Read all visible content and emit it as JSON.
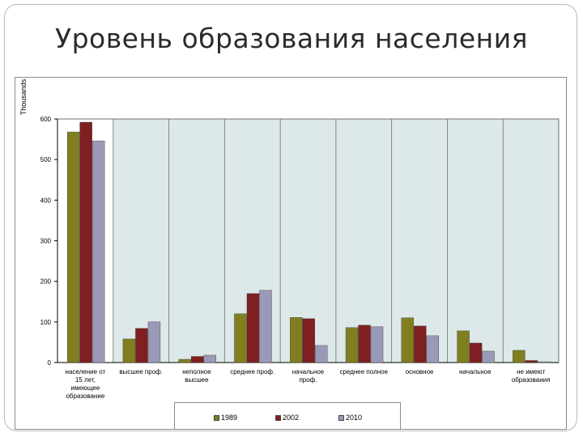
{
  "slide": {
    "title": "Уровень образования населения"
  },
  "chart_data": {
    "type": "bar",
    "title": "",
    "xlabel": "",
    "ylabel": "Thousands",
    "ylim": [
      0,
      600
    ],
    "yticks": [
      0,
      100,
      200,
      300,
      400,
      500,
      600
    ],
    "grid": true,
    "legend_position": "bottom",
    "categories": [
      "население от 15 лет, имеющее образование",
      "высшее проф.",
      "неполное высшее",
      "среднее проф.",
      "начальное проф.",
      "среднее полное",
      "основное",
      "начальное",
      "не имеют образования"
    ],
    "series": [
      {
        "name": "1989",
        "color": "#7f7f20",
        "values": [
          568,
          58,
          8,
          120,
          111,
          86,
          110,
          78,
          30
        ]
      },
      {
        "name": "2002",
        "color": "#7f1f22",
        "values": [
          592,
          84,
          15,
          170,
          108,
          92,
          90,
          48,
          5
        ]
      },
      {
        "name": "2010",
        "color": "#9a9ab8",
        "values": [
          546,
          100,
          18,
          178,
          42,
          88,
          66,
          28,
          2
        ]
      }
    ],
    "plot_background": "#dde8e8"
  }
}
